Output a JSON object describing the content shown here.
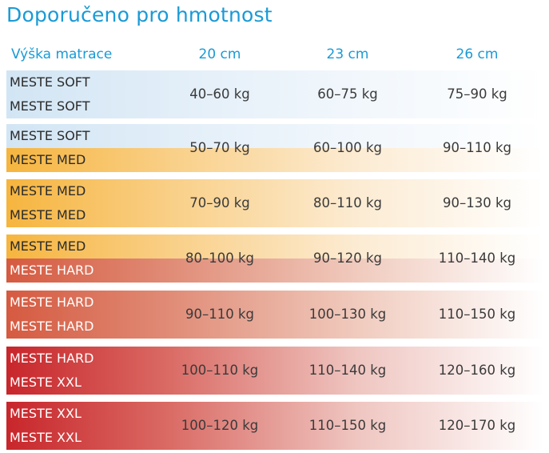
{
  "title": "Doporučeno pro hmotnost",
  "header": {
    "label": "Výška matrace",
    "columns": [
      "20 cm",
      "23 cm",
      "26 cm"
    ]
  },
  "colors": {
    "title": "#1a9ad6",
    "soft": "#d2e5f4",
    "med": "#f6b53e",
    "hard": "#d55a40",
    "xxl": "#c8262b"
  },
  "rows": [
    {
      "top": "MESTE SOFT",
      "bottom": "MESTE SOFT",
      "values": [
        "40–60 kg",
        "60–75 kg",
        "75–90 kg"
      ]
    },
    {
      "top": "MESTE SOFT",
      "bottom": "MESTE MED",
      "values": [
        "50–70 kg",
        "60–100 kg",
        "90–110 kg"
      ]
    },
    {
      "top": "MESTE MED",
      "bottom": "MESTE MED",
      "values": [
        "70–90 kg",
        "80–110 kg",
        "90–130 kg"
      ]
    },
    {
      "top": "MESTE MED",
      "bottom": "MESTE HARD",
      "values": [
        "80–100 kg",
        "90–120 kg",
        "110–140 kg"
      ]
    },
    {
      "top": "MESTE HARD",
      "bottom": "MESTE HARD",
      "values": [
        "90–110 kg",
        "100–130 kg",
        "110–150 kg"
      ]
    },
    {
      "top": "MESTE HARD",
      "bottom": "MESTE XXL",
      "values": [
        "100–110 kg",
        "110–140 kg",
        "120–160 kg"
      ]
    },
    {
      "top": "MESTE XXL",
      "bottom": "MESTE XXL",
      "values": [
        "100–120 kg",
        "110–150 kg",
        "120–170 kg"
      ]
    }
  ]
}
